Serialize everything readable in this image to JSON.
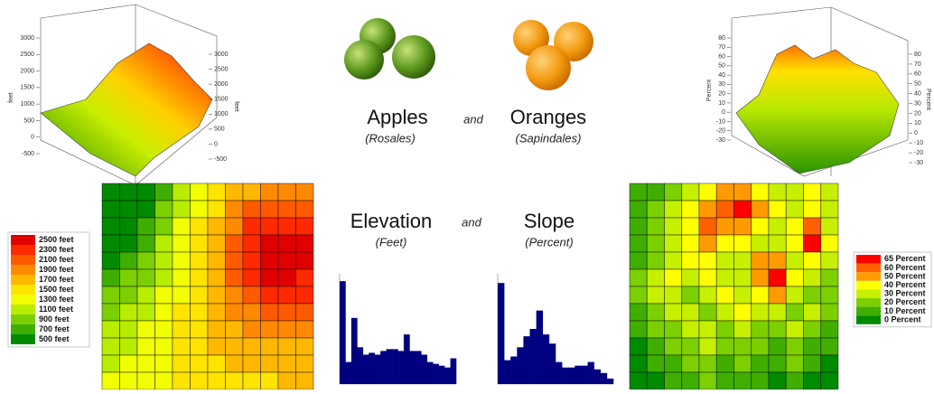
{
  "header": {
    "left_word": "Apples",
    "left_sub": "(Rosales)",
    "join": "and",
    "right_word": "Oranges",
    "right_sub": "(Sapindales)"
  },
  "subheader": {
    "left_word": "Elevation",
    "left_sub": "(Feet)",
    "join": "and",
    "right_word": "Slope",
    "right_sub": "(Percent)"
  },
  "elevation": {
    "surface": {
      "axis_label": "feet",
      "left_ticks": [
        3000,
        2500,
        2000,
        1500,
        1000,
        500,
        0,
        -500
      ],
      "right_ticks": [
        3000,
        2500,
        2000,
        1500,
        1000,
        500,
        0,
        -500
      ]
    },
    "legend": [
      {
        "label": "2500 feet",
        "value": 2500,
        "color": "#e00000"
      },
      {
        "label": "2300 feet",
        "value": 2300,
        "color": "#ff2a00"
      },
      {
        "label": "2100 feet",
        "value": 2100,
        "color": "#ff5a00"
      },
      {
        "label": "1900 feet",
        "value": 1900,
        "color": "#ff8a00"
      },
      {
        "label": "1700 feet",
        "value": 1700,
        "color": "#ffb800"
      },
      {
        "label": "1500 feet",
        "value": 1500,
        "color": "#ffe400"
      },
      {
        "label": "1300 feet",
        "value": 1300,
        "color": "#f2ff00"
      },
      {
        "label": "1100 feet",
        "value": 1100,
        "color": "#b8ec00"
      },
      {
        "label": "900 feet",
        "value": 900,
        "color": "#7ccf00"
      },
      {
        "label": "700 feet",
        "value": 700,
        "color": "#3fae00"
      },
      {
        "label": "500 feet",
        "value": 500,
        "color": "#008a00"
      }
    ],
    "grid": [
      [
        500,
        500,
        600,
        800,
        1100,
        1300,
        1500,
        1700,
        1800,
        1900,
        1900,
        1900
      ],
      [
        500,
        500,
        600,
        900,
        1200,
        1400,
        1600,
        1900,
        2100,
        2100,
        2100,
        2100
      ],
      [
        500,
        500,
        700,
        1000,
        1300,
        1500,
        1700,
        2000,
        2300,
        2300,
        2300,
        2300
      ],
      [
        500,
        600,
        800,
        1100,
        1300,
        1500,
        1800,
        2100,
        2300,
        2500,
        2500,
        2500
      ],
      [
        600,
        700,
        900,
        1100,
        1300,
        1600,
        1800,
        2100,
        2400,
        2500,
        2500,
        2500
      ],
      [
        700,
        900,
        1000,
        1200,
        1400,
        1600,
        1800,
        2100,
        2300,
        2500,
        2500,
        2400
      ],
      [
        900,
        1000,
        1100,
        1300,
        1400,
        1600,
        1800,
        2000,
        2200,
        2300,
        2300,
        2300
      ],
      [
        1000,
        1100,
        1200,
        1300,
        1500,
        1600,
        1800,
        1900,
        2000,
        2100,
        2100,
        2100
      ],
      [
        1100,
        1200,
        1300,
        1400,
        1500,
        1600,
        1700,
        1800,
        1900,
        1900,
        1900,
        1900
      ],
      [
        1200,
        1200,
        1300,
        1400,
        1500,
        1600,
        1700,
        1700,
        1800,
        1800,
        1800,
        1800
      ],
      [
        1200,
        1300,
        1300,
        1400,
        1500,
        1500,
        1600,
        1700,
        1700,
        1700,
        1700,
        1700
      ],
      [
        1300,
        1300,
        1400,
        1400,
        1500,
        1500,
        1600,
        1600,
        1600,
        1600,
        1700,
        1700
      ]
    ],
    "histogram": {
      "values": [
        280,
        60,
        180,
        100,
        80,
        85,
        80,
        90,
        95,
        95,
        90,
        135,
        90,
        90,
        80,
        60,
        55,
        50,
        45,
        70
      ],
      "ylim": [
        0,
        300
      ],
      "color": "#000080"
    }
  },
  "slope": {
    "surface": {
      "axis_label": "Percent",
      "left_ticks": [
        80,
        70,
        60,
        50,
        40,
        30,
        20,
        10,
        0,
        -10,
        -20,
        -30
      ],
      "right_ticks": [
        80,
        70,
        60,
        50,
        40,
        30,
        20,
        10,
        0,
        -10,
        -20,
        -30
      ]
    },
    "legend": [
      {
        "label": "65 Percent",
        "value": 65,
        "color": "#ff0000"
      },
      {
        "label": "60 Percent",
        "value": 60,
        "color": "#ff6000"
      },
      {
        "label": "50 Percent",
        "value": 50,
        "color": "#ff9a00"
      },
      {
        "label": "40 Percent",
        "value": 40,
        "color": "#ffff00"
      },
      {
        "label": "30 Percent",
        "value": 30,
        "color": "#c6f000"
      },
      {
        "label": "20 Percent",
        "value": 20,
        "color": "#7ccf00"
      },
      {
        "label": "10 Percent",
        "value": 10,
        "color": "#3fae00"
      },
      {
        "label": "0 Percent",
        "value": 0,
        "color": "#008a00"
      }
    ],
    "grid": [
      [
        10,
        10,
        20,
        30,
        40,
        50,
        50,
        40,
        30,
        30,
        40,
        30
      ],
      [
        10,
        20,
        30,
        40,
        50,
        60,
        65,
        50,
        40,
        30,
        40,
        30
      ],
      [
        10,
        20,
        30,
        40,
        60,
        50,
        50,
        40,
        30,
        40,
        60,
        30
      ],
      [
        10,
        20,
        30,
        40,
        50,
        40,
        40,
        30,
        30,
        40,
        65,
        40
      ],
      [
        10,
        20,
        30,
        40,
        40,
        30,
        30,
        50,
        50,
        30,
        40,
        30
      ],
      [
        20,
        30,
        40,
        30,
        40,
        30,
        30,
        50,
        65,
        40,
        30,
        20
      ],
      [
        20,
        30,
        30,
        20,
        30,
        40,
        30,
        40,
        50,
        30,
        20,
        20
      ],
      [
        10,
        20,
        30,
        30,
        20,
        30,
        40,
        30,
        30,
        20,
        30,
        20
      ],
      [
        10,
        20,
        20,
        30,
        30,
        20,
        30,
        20,
        20,
        30,
        20,
        10
      ],
      [
        0,
        10,
        20,
        20,
        30,
        20,
        20,
        20,
        10,
        20,
        10,
        10
      ],
      [
        0,
        10,
        10,
        20,
        20,
        10,
        20,
        10,
        10,
        20,
        10,
        0
      ],
      [
        0,
        0,
        10,
        10,
        20,
        10,
        10,
        10,
        0,
        10,
        0,
        0
      ]
    ],
    "histogram": {
      "values": [
        275,
        65,
        75,
        100,
        130,
        150,
        200,
        135,
        110,
        60,
        45,
        45,
        50,
        50,
        60,
        40,
        30,
        15
      ],
      "ylim": [
        0,
        300
      ],
      "color": "#000080"
    }
  }
}
